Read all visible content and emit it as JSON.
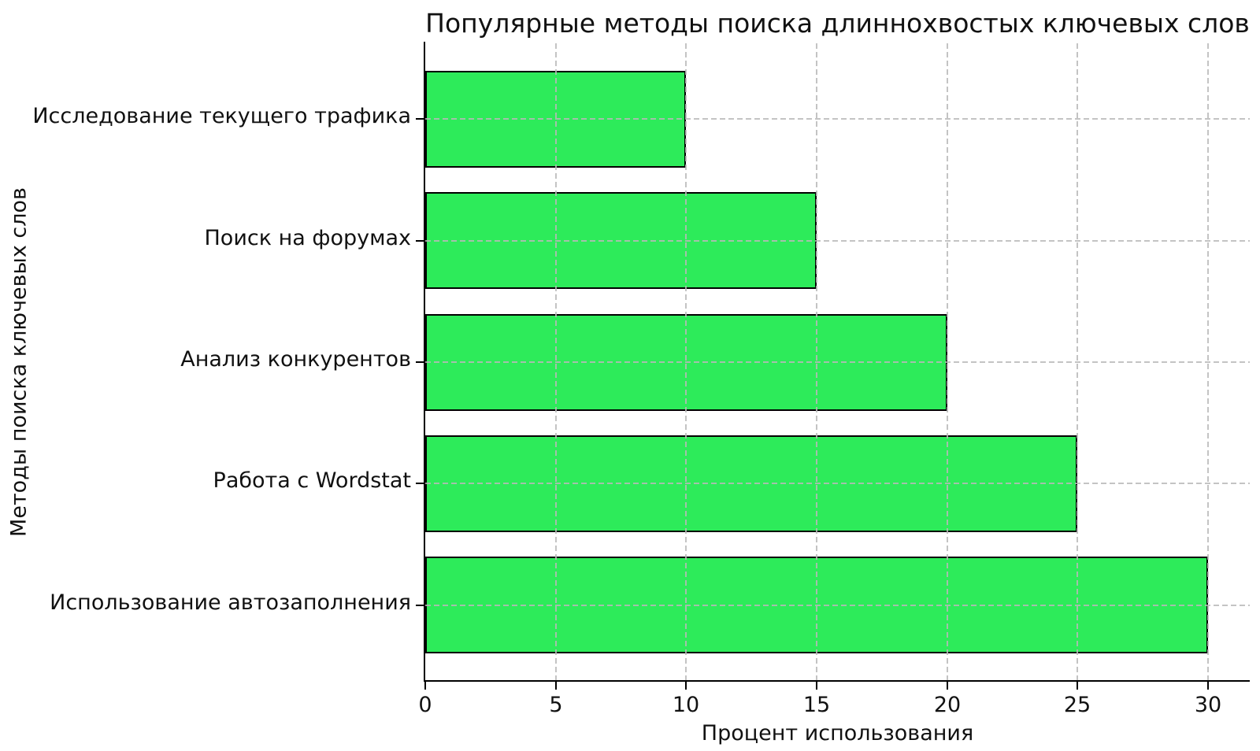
{
  "chart_data": {
    "type": "bar",
    "orientation": "horizontal",
    "title": "Популярные методы поиска длиннохвостых ключевых слов",
    "xlabel": "Процент использования",
    "ylabel": "Методы поиска ключевых слов",
    "categories": [
      "Исследование текущего трафика",
      "Поиск на форумах",
      "Анализ конкурентов",
      "Работа с Wordstat",
      "Использование автозаполнения"
    ],
    "values": [
      10,
      15,
      20,
      25,
      30
    ],
    "xticks": [
      0,
      5,
      10,
      15,
      20,
      25,
      30
    ],
    "xlim": [
      0,
      31.6
    ],
    "grid": "dashed",
    "grid_on_top": true,
    "legend": "none",
    "bar_color": "#2deb5a",
    "bar_edge_color": "#000000",
    "grid_color": "#b9b9b9",
    "axis_color": "#000000",
    "background": "#ffffff"
  }
}
